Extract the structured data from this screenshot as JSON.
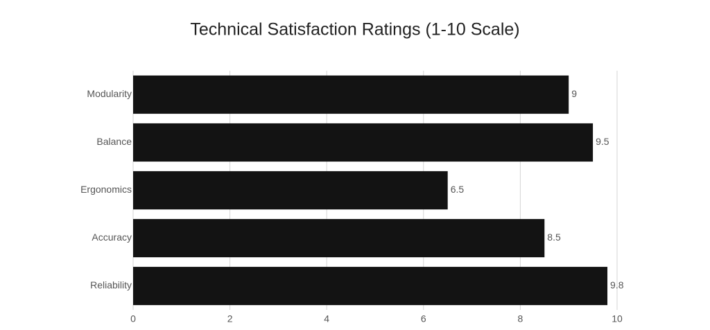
{
  "chart_data": {
    "type": "bar",
    "orientation": "horizontal",
    "title": "Technical Satisfaction Ratings (1-10 Scale)",
    "categories": [
      "Modularity",
      "Balance",
      "Ergonomics",
      "Accuracy",
      "Reliability"
    ],
    "values": [
      9,
      9.5,
      6.5,
      8.5,
      9.8
    ],
    "color": "#131313",
    "xlim": [
      0,
      10
    ],
    "xticks": [
      0,
      2,
      4,
      6,
      8,
      10
    ],
    "grid": true
  }
}
